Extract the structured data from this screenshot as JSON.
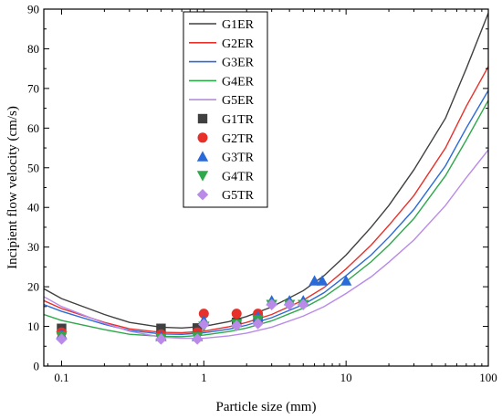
{
  "chart_data": {
    "type": "line",
    "title": "",
    "xlabel": "Particle size (mm)",
    "ylabel": "Incipient flow velocity (cm/s)",
    "xscale": "log",
    "xlim": [
      0.075,
      100
    ],
    "ylim": [
      0,
      90
    ],
    "xticks": [
      {
        "value": 0.1,
        "label": "0.1"
      },
      {
        "value": 1,
        "label": "1"
      },
      {
        "value": 10,
        "label": "10"
      },
      {
        "value": 100,
        "label": "100"
      }
    ],
    "yticks": [
      {
        "value": 0,
        "label": "0"
      },
      {
        "value": 10,
        "label": "10"
      },
      {
        "value": 20,
        "label": "20"
      },
      {
        "value": 30,
        "label": "30"
      },
      {
        "value": 40,
        "label": "40"
      },
      {
        "value": 50,
        "label": "50"
      },
      {
        "value": 60,
        "label": "60"
      },
      {
        "value": 70,
        "label": "70"
      },
      {
        "value": 80,
        "label": "80"
      },
      {
        "value": 90,
        "label": "90"
      }
    ],
    "grid": false,
    "legend_position": "top-left-center",
    "series": [
      {
        "name": "G1ER",
        "kind": "line",
        "color": "#404040",
        "x": [
          0.075,
          0.1,
          0.2,
          0.3,
          0.5,
          0.7,
          1,
          1.5,
          2,
          3,
          5,
          7,
          10,
          15,
          20,
          30,
          50,
          70,
          100
        ],
        "y": [
          19.5,
          17,
          13,
          11,
          9.8,
          9.6,
          10,
          11.2,
          12.5,
          14.9,
          19,
          22.8,
          28,
          35,
          40.5,
          49.5,
          62.5,
          75,
          89
        ]
      },
      {
        "name": "G2ER",
        "kind": "line",
        "color": "#e8302a",
        "x": [
          0.075,
          0.1,
          0.2,
          0.3,
          0.5,
          0.7,
          1,
          1.5,
          2,
          3,
          5,
          7,
          10,
          15,
          20,
          30,
          50,
          70,
          100
        ],
        "y": [
          16.5,
          14.5,
          11,
          9.4,
          8.5,
          8.4,
          8.8,
          9.9,
          11,
          13,
          16.6,
          19.8,
          24.5,
          30.5,
          35.5,
          43,
          55,
          65.5,
          75.5
        ]
      },
      {
        "name": "G3ER",
        "kind": "line",
        "color": "#2a6ad8",
        "x": [
          0.075,
          0.1,
          0.2,
          0.3,
          0.5,
          0.7,
          1,
          1.5,
          2,
          3,
          5,
          7,
          10,
          15,
          20,
          30,
          50,
          70,
          100
        ],
        "y": [
          15.5,
          13.8,
          10.5,
          9,
          8.1,
          8,
          8.4,
          9.3,
          10.3,
          12.2,
          15.5,
          18.5,
          22.8,
          28,
          32.5,
          39.5,
          50.5,
          60,
          69.5
        ]
      },
      {
        "name": "G4ER",
        "kind": "line",
        "color": "#2ea84a",
        "x": [
          0.075,
          0.1,
          0.2,
          0.3,
          0.5,
          0.7,
          1,
          1.5,
          2,
          3,
          5,
          7,
          10,
          15,
          20,
          30,
          50,
          70,
          100
        ],
        "y": [
          13,
          11.5,
          9.2,
          8,
          7.5,
          7.4,
          7.8,
          8.7,
          9.6,
          11.4,
          14.6,
          17.4,
          21.3,
          26.3,
          30.5,
          37.2,
          48,
          57,
          67
        ]
      },
      {
        "name": "G5ER",
        "kind": "line",
        "color": "#b98ae8",
        "x": [
          0.075,
          0.1,
          0.2,
          0.3,
          0.5,
          0.7,
          1,
          1.5,
          2,
          3,
          5,
          7,
          10,
          15,
          20,
          30,
          50,
          70,
          100
        ],
        "y": [
          17.5,
          15,
          10.8,
          8.8,
          7.3,
          7,
          7,
          7.6,
          8.3,
          9.8,
          12.6,
          15,
          18.3,
          22.5,
          26.2,
          31.8,
          40.5,
          47.5,
          54.5
        ]
      },
      {
        "name": "G1TR",
        "kind": "scatter",
        "marker": "square",
        "color": "#404040",
        "x": [
          0.1,
          0.5,
          0.9,
          1.7,
          2.4
        ],
        "y": [
          9.5,
          9.5,
          9.6,
          11,
          12
        ]
      },
      {
        "name": "G2TR",
        "kind": "scatter",
        "marker": "circle",
        "color": "#e8302a",
        "x": [
          0.1,
          0.5,
          0.9,
          1,
          1.7,
          2.4
        ],
        "y": [
          8.5,
          8,
          8.5,
          13.2,
          13.2,
          13.2
        ]
      },
      {
        "name": "G3TR",
        "kind": "scatter",
        "marker": "triangle-up",
        "color": "#2a6ad8",
        "x": [
          0.1,
          0.5,
          0.9,
          1,
          2.4,
          3,
          4,
          5,
          6,
          6.8,
          10
        ],
        "y": [
          8,
          7.5,
          7.5,
          11.5,
          12.5,
          16.5,
          16.5,
          16.5,
          21.5,
          21.5,
          21.5
        ]
      },
      {
        "name": "G4TR",
        "kind": "scatter",
        "marker": "triangle-down",
        "color": "#2ea84a",
        "x": [
          0.1,
          0.5,
          0.9,
          1,
          1.7,
          2.4,
          3,
          4,
          5
        ],
        "y": [
          7.5,
          7,
          7.3,
          10,
          10.6,
          11.6,
          15.5,
          15.5,
          15.5
        ]
      },
      {
        "name": "G5TR",
        "kind": "scatter",
        "marker": "diamond",
        "color": "#b98ae8",
        "x": [
          0.1,
          0.5,
          0.9,
          1,
          1.7,
          2.4,
          3,
          4,
          5
        ],
        "y": [
          6.8,
          6.8,
          6.8,
          10.5,
          10.2,
          10.7,
          15.5,
          15.5,
          15.5
        ]
      }
    ]
  }
}
